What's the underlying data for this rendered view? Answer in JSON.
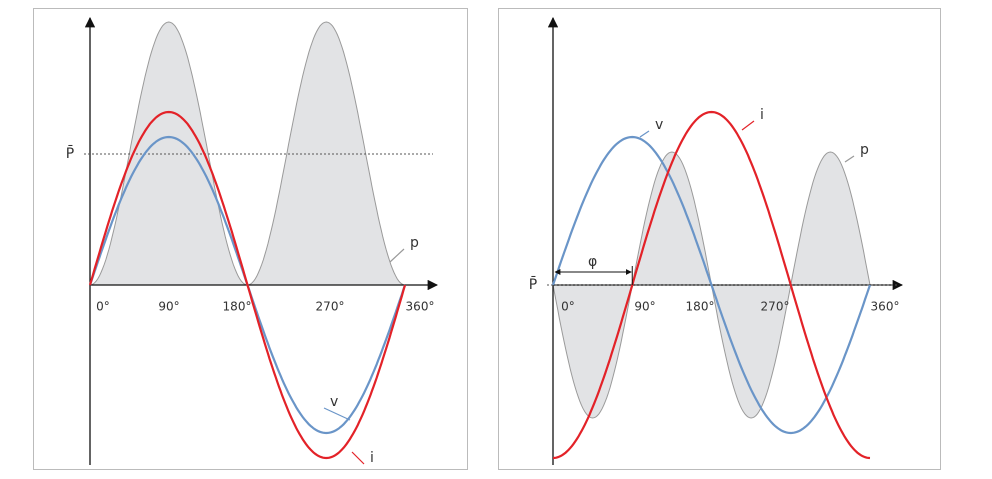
{
  "panels": [
    {
      "average_label": "P̄",
      "angle_labels": [
        "0°",
        "90°",
        "180°",
        "270°",
        "360°"
      ],
      "voltage_label": "v",
      "current_label": "i",
      "power_label": "p"
    },
    {
      "average_label": "P̄",
      "angle_labels": [
        "0°",
        "90°",
        "180°",
        "270°",
        "360°"
      ],
      "voltage_label": "v",
      "current_label": "i",
      "power_label": "p",
      "phase_label": "φ"
    }
  ]
}
